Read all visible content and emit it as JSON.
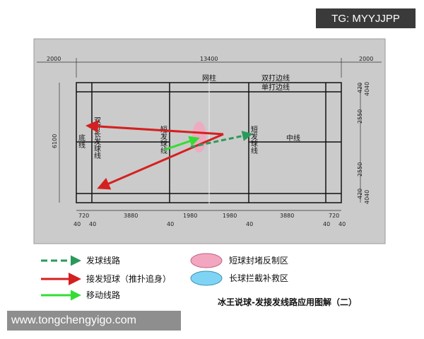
{
  "watermark_top": "TG: MYYJJPP",
  "watermark_bottom": "www.tongchengyigo.com",
  "dimensions": {
    "top": [
      "2000",
      "13400",
      "2000"
    ],
    "left": "6100",
    "right": [
      "420",
      "2550",
      "2550",
      "420"
    ],
    "right_small": [
      "40",
      "40",
      "40",
      "40"
    ],
    "bottom": [
      "720",
      "3880",
      "1980",
      "1980",
      "3880",
      "720"
    ],
    "bottom_small": [
      "40",
      "40",
      "40",
      "40",
      "40",
      "40"
    ]
  },
  "court_labels": {
    "net_post": "网柱",
    "doubles_sideline": "双打边线",
    "singles_sideline": "单打边线",
    "baseline": "底线",
    "doubles_long_service_line": "双打长发球线",
    "short_service_line_left": "短发球线",
    "short_service_line_right": "短发球线",
    "center_line": "中线"
  },
  "legend": {
    "serve_route": "发球线路",
    "return_short": "接发短球（推扑追身）",
    "movement_route": "移动线路",
    "short_block_zone": "短球封堵反制区",
    "long_intercept_zone": "长球拦截补救区"
  },
  "caption": "冰王说球-发接发线路应用图解（二）",
  "colors": {
    "serve": "#2a9a5a",
    "return": "#d42020",
    "move": "#33dd33",
    "pink_zone": "#f3a6c0",
    "blue_zone": "#7fd4f5",
    "panel": "#cbcbcb"
  }
}
